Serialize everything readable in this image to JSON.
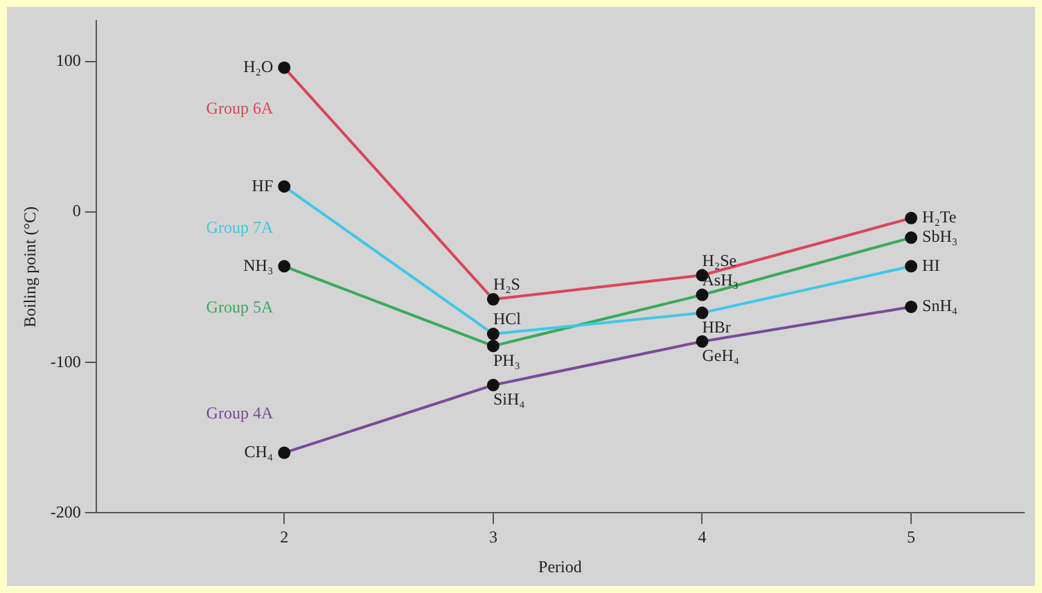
{
  "chart_data": {
    "type": "line",
    "xlabel": "Period",
    "ylabel": "Boiling point (°C)",
    "x": [
      2,
      3,
      4,
      5
    ],
    "xlim": [
      1.1,
      5.54
    ],
    "xticks": [
      2,
      3,
      4,
      5
    ],
    "ylim": [
      -200,
      127
    ],
    "yticks": [
      100,
      0,
      -100,
      -200
    ],
    "grid": false,
    "legend": false,
    "marker": "circle",
    "line_style": "solid",
    "series": [
      {
        "name": "Group 6A",
        "color": "#d9465a",
        "values": [
          96,
          -58,
          -42,
          -4
        ]
      },
      {
        "name": "Group 7A",
        "color": "#3ec8e8",
        "values": [
          17,
          -81,
          -67,
          -36
        ]
      },
      {
        "name": "Group 5A",
        "color": "#3aaa5a",
        "values": [
          -36,
          -89,
          -55,
          -17
        ]
      },
      {
        "name": "Group 4A",
        "color": "#7a4a9a",
        "values": [
          -160,
          -115,
          -86,
          -63
        ]
      }
    ],
    "annotations": [
      {
        "text": "H₂O",
        "x": 2,
        "y": 96
      },
      {
        "text": "H₂S",
        "x": 3,
        "y": -58
      },
      {
        "text": "H₂Se",
        "x": 4,
        "y": -42
      },
      {
        "text": "H₂Te",
        "x": 5,
        "y": -4
      },
      {
        "text": "HF",
        "x": 2,
        "y": 17
      },
      {
        "text": "HCl",
        "x": 3,
        "y": -81
      },
      {
        "text": "HBr",
        "x": 4,
        "y": -67
      },
      {
        "text": "HI",
        "x": 5,
        "y": -36
      },
      {
        "text": "NH₃",
        "x": 2,
        "y": -36
      },
      {
        "text": "PH₃",
        "x": 3,
        "y": -89
      },
      {
        "text": "AsH₃",
        "x": 4,
        "y": -55
      },
      {
        "text": "SbH₃",
        "x": 5,
        "y": -17
      },
      {
        "text": "CH₄",
        "x": 2,
        "y": -160
      },
      {
        "text": "SiH₄",
        "x": 3,
        "y": -115
      },
      {
        "text": "GeH₄",
        "x": 4,
        "y": -86
      },
      {
        "text": "SnH₄",
        "x": 5,
        "y": -63
      }
    ]
  }
}
